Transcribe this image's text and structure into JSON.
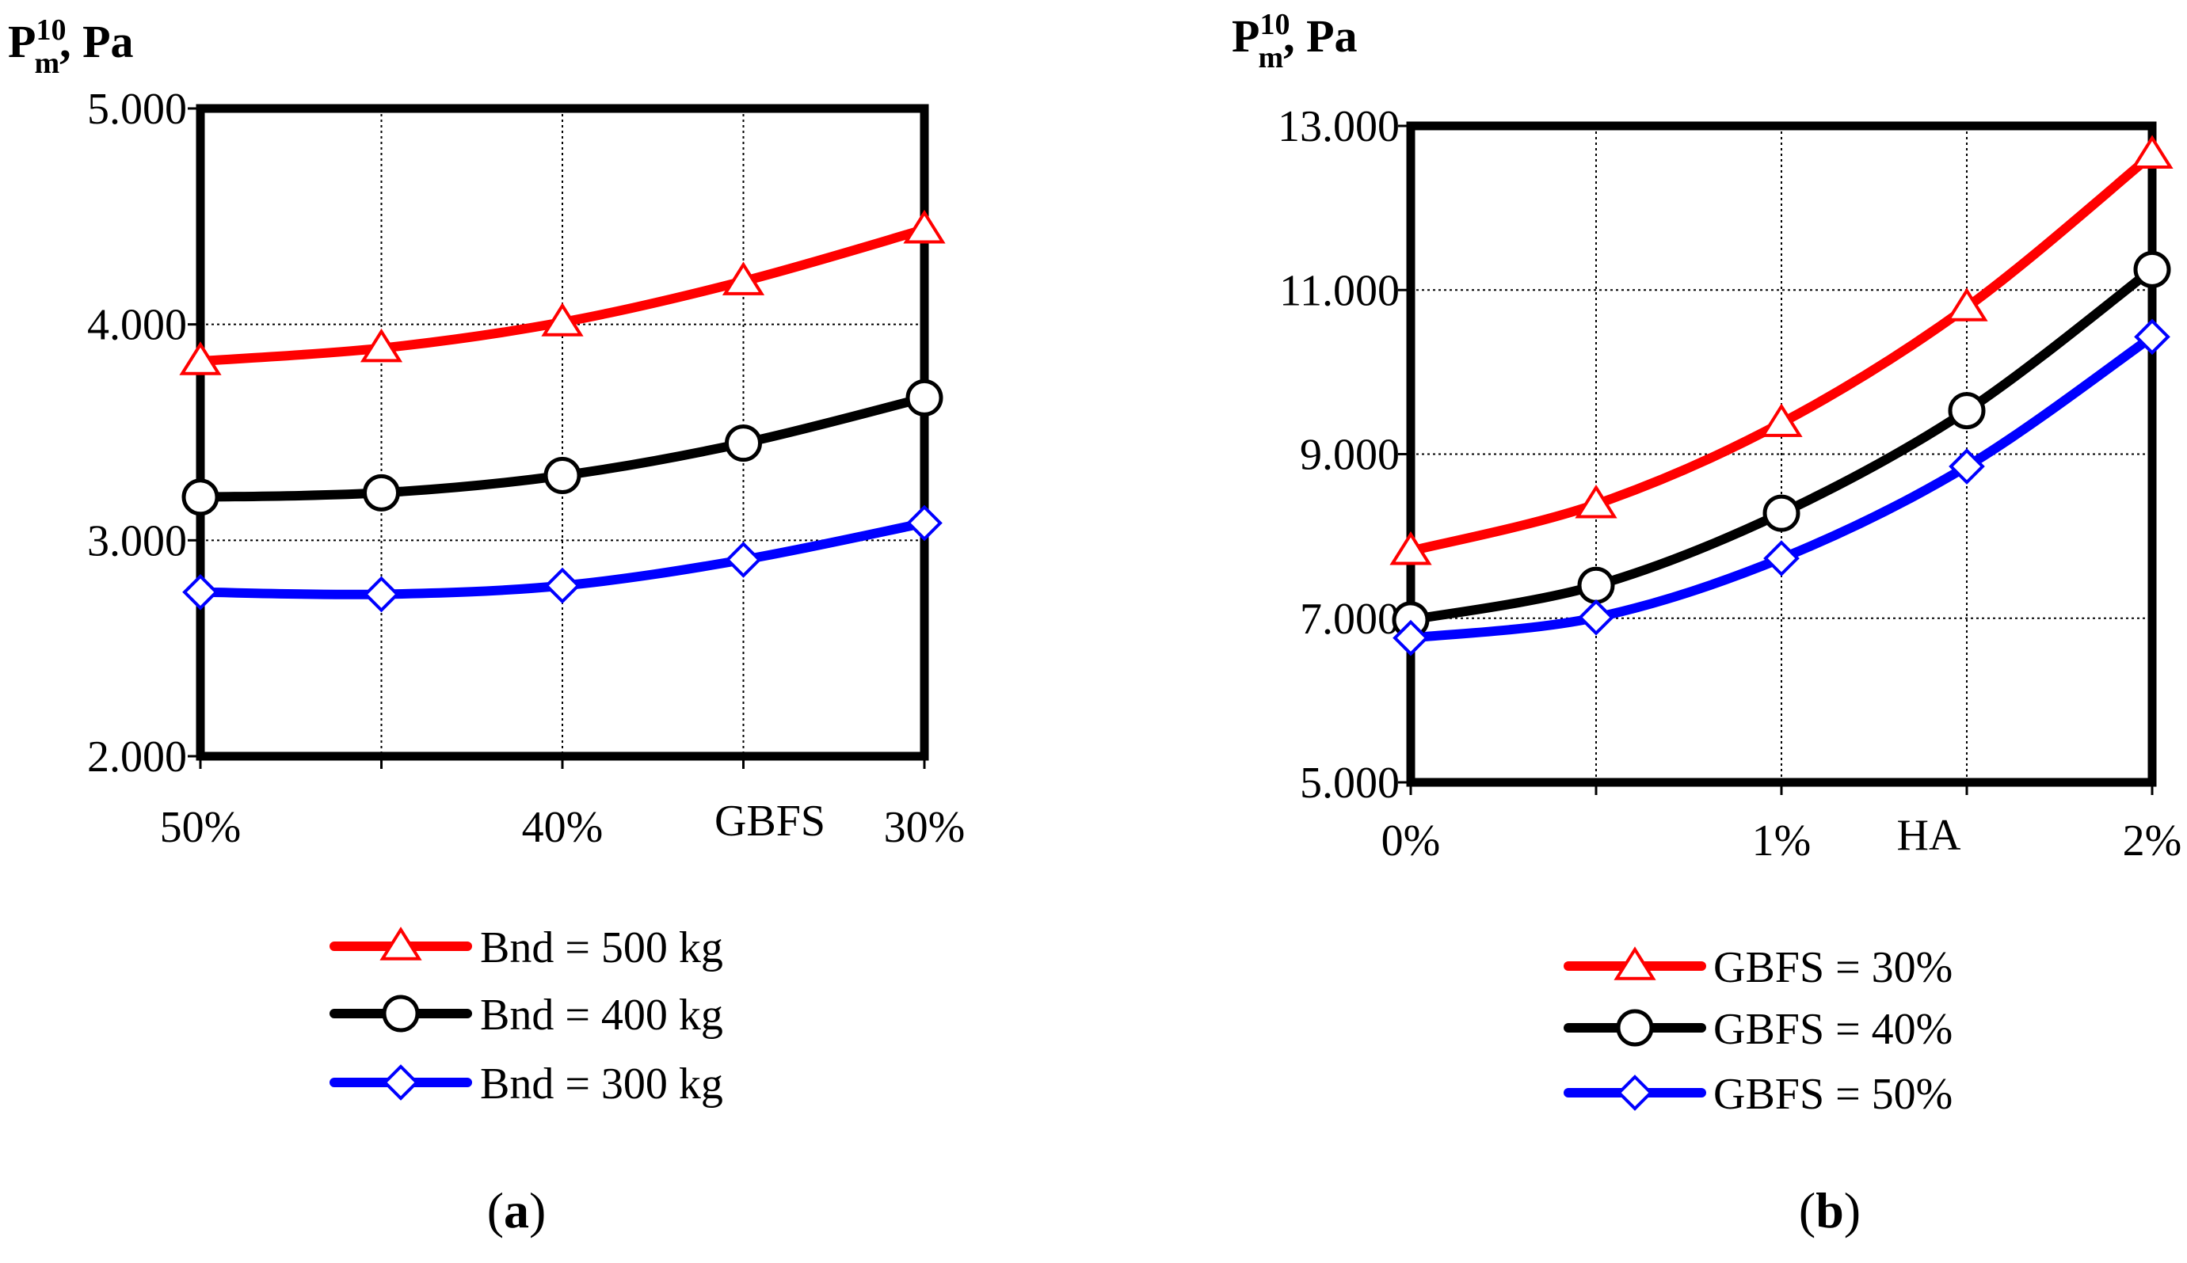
{
  "chart_data": [
    {
      "type": "line",
      "id": "a",
      "caption": "a",
      "ylabel": {
        "main": "P",
        "sup": "10",
        "sub": "m",
        "unit": ", Pa"
      },
      "xlabel": "GBFS",
      "x": [
        50,
        45,
        40,
        35,
        30
      ],
      "x_ticklabels": [
        "50%",
        "",
        "40%",
        "",
        "30%"
      ],
      "y_ticks": [
        2000,
        3000,
        4000,
        5000
      ],
      "y_ticklabels": [
        "2.000",
        "3.000",
        "4.000",
        "5.000"
      ],
      "ylim": [
        2000,
        5000
      ],
      "grid": true,
      "legend_position": "bottom",
      "series": [
        {
          "name": "Bnd = 500 kg",
          "color": "#ff0000",
          "marker": "triangle",
          "values": [
            3830,
            3890,
            4010,
            4200,
            4440
          ]
        },
        {
          "name": "Bnd = 400 kg",
          "color": "#000000",
          "marker": "circle",
          "values": [
            3200,
            3220,
            3300,
            3450,
            3660
          ]
        },
        {
          "name": "Bnd = 300 kg",
          "color": "#0000ff",
          "marker": "diamond",
          "values": [
            2760,
            2750,
            2790,
            2910,
            3080
          ]
        }
      ]
    },
    {
      "type": "line",
      "id": "b",
      "caption": "b",
      "ylabel": {
        "main": "P",
        "sup": "10",
        "sub": "m",
        "unit": ", Pa"
      },
      "xlabel": "HA",
      "x": [
        0,
        0.5,
        1,
        1.5,
        2
      ],
      "x_ticklabels": [
        "0%",
        "",
        "1%",
        "",
        "2%"
      ],
      "y_ticks": [
        5000,
        7000,
        9000,
        11000,
        13000
      ],
      "y_ticklabels": [
        "5.000",
        "7.000",
        "9.000",
        "11.000",
        "13.000"
      ],
      "ylim": [
        5000,
        13000
      ],
      "grid": true,
      "legend_position": "bottom",
      "series": [
        {
          "name": "GBFS = 30%",
          "color": "#ff0000",
          "marker": "triangle",
          "values": [
            7820,
            8390,
            9380,
            10790,
            12650
          ]
        },
        {
          "name": "GBFS = 40%",
          "color": "#000000",
          "marker": "circle",
          "values": [
            6980,
            7400,
            8280,
            9530,
            11250
          ]
        },
        {
          "name": "GBFS = 50%",
          "color": "#0000ff",
          "marker": "diamond",
          "values": [
            6760,
            7010,
            7730,
            8850,
            10430
          ]
        }
      ]
    }
  ]
}
